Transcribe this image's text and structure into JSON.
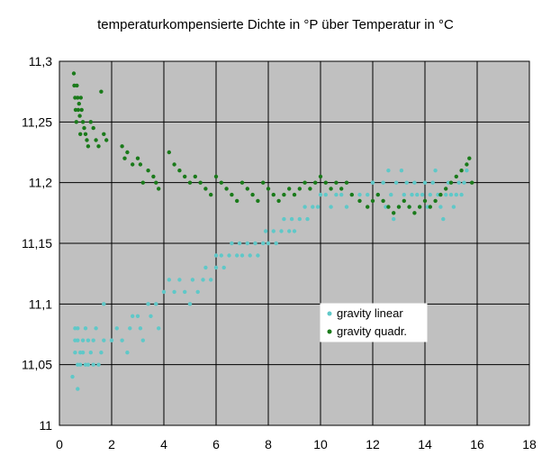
{
  "chart_data": {
    "type": "scatter",
    "title": "temperaturkompensierte Dichte in °P über Temperatur in °C",
    "xlabel": "",
    "ylabel": "",
    "xlim": [
      0,
      18
    ],
    "ylim": [
      11,
      11.3
    ],
    "x_ticks": [
      "0",
      "2",
      "4",
      "6",
      "8",
      "10",
      "12",
      "14",
      "16",
      "18"
    ],
    "y_ticks": [
      "11",
      "11,05",
      "11,1",
      "11,15",
      "11,2",
      "11,25",
      "11,3"
    ],
    "grid": true,
    "legend_position": "center-right",
    "plot_background": "#c0c0c0",
    "series": [
      {
        "name": "gravity linear",
        "color": "#5fc8c8",
        "points": [
          [
            0.5,
            11.04
          ],
          [
            0.6,
            11.07
          ],
          [
            0.6,
            11.08
          ],
          [
            0.6,
            11.06
          ],
          [
            0.7,
            11.05
          ],
          [
            0.7,
            11.07
          ],
          [
            0.7,
            11.08
          ],
          [
            0.7,
            11.03
          ],
          [
            0.8,
            11.06
          ],
          [
            0.8,
            11.05
          ],
          [
            0.9,
            11.07
          ],
          [
            0.9,
            11.06
          ],
          [
            1.0,
            11.05
          ],
          [
            1.0,
            11.08
          ],
          [
            1.1,
            11.07
          ],
          [
            1.1,
            11.05
          ],
          [
            1.2,
            11.06
          ],
          [
            1.3,
            11.05
          ],
          [
            1.3,
            11.07
          ],
          [
            1.4,
            11.08
          ],
          [
            1.5,
            11.05
          ],
          [
            1.6,
            11.06
          ],
          [
            1.7,
            11.07
          ],
          [
            1.7,
            11.1
          ],
          [
            2.0,
            11.07
          ],
          [
            2.2,
            11.08
          ],
          [
            2.4,
            11.07
          ],
          [
            2.6,
            11.06
          ],
          [
            2.7,
            11.08
          ],
          [
            2.8,
            11.09
          ],
          [
            3.0,
            11.09
          ],
          [
            3.1,
            11.08
          ],
          [
            3.2,
            11.07
          ],
          [
            3.4,
            11.1
          ],
          [
            3.5,
            11.09
          ],
          [
            3.7,
            11.1
          ],
          [
            3.8,
            11.08
          ],
          [
            4.0,
            11.11
          ],
          [
            4.2,
            11.12
          ],
          [
            4.4,
            11.11
          ],
          [
            4.6,
            11.12
          ],
          [
            4.8,
            11.11
          ],
          [
            5.0,
            11.1
          ],
          [
            5.1,
            11.12
          ],
          [
            5.3,
            11.11
          ],
          [
            5.5,
            11.12
          ],
          [
            5.6,
            11.13
          ],
          [
            5.8,
            11.12
          ],
          [
            6.0,
            11.13
          ],
          [
            6.0,
            11.14
          ],
          [
            6.2,
            11.14
          ],
          [
            6.3,
            11.13
          ],
          [
            6.5,
            11.14
          ],
          [
            6.6,
            11.15
          ],
          [
            6.8,
            11.14
          ],
          [
            6.9,
            11.15
          ],
          [
            7.0,
            11.14
          ],
          [
            7.2,
            11.15
          ],
          [
            7.3,
            11.14
          ],
          [
            7.5,
            11.15
          ],
          [
            7.6,
            11.14
          ],
          [
            7.8,
            11.15
          ],
          [
            7.9,
            11.16
          ],
          [
            8.0,
            11.15
          ],
          [
            8.2,
            11.16
          ],
          [
            8.3,
            11.15
          ],
          [
            8.5,
            11.16
          ],
          [
            8.6,
            11.17
          ],
          [
            8.8,
            11.16
          ],
          [
            8.9,
            11.17
          ],
          [
            9.0,
            11.16
          ],
          [
            9.2,
            11.17
          ],
          [
            9.4,
            11.18
          ],
          [
            9.5,
            11.17
          ],
          [
            9.7,
            11.18
          ],
          [
            9.9,
            11.18
          ],
          [
            10.0,
            11.19
          ],
          [
            10.2,
            11.19
          ],
          [
            10.4,
            11.18
          ],
          [
            10.6,
            11.19
          ],
          [
            10.8,
            11.19
          ],
          [
            11.0,
            11.18
          ],
          [
            11.2,
            11.19
          ],
          [
            11.5,
            11.19
          ],
          [
            11.8,
            11.19
          ],
          [
            12.0,
            11.2
          ],
          [
            12.2,
            11.19
          ],
          [
            12.4,
            11.2
          ],
          [
            12.5,
            11.18
          ],
          [
            12.6,
            11.21
          ],
          [
            12.7,
            11.19
          ],
          [
            12.8,
            11.17
          ],
          [
            12.9,
            11.2
          ],
          [
            13.0,
            11.18
          ],
          [
            13.1,
            11.21
          ],
          [
            13.2,
            11.19
          ],
          [
            13.3,
            11.2
          ],
          [
            13.4,
            11.18
          ],
          [
            13.5,
            11.19
          ],
          [
            13.6,
            11.2
          ],
          [
            13.7,
            11.19
          ],
          [
            13.8,
            11.18
          ],
          [
            13.9,
            11.19
          ],
          [
            14.0,
            11.2
          ],
          [
            14.1,
            11.18
          ],
          [
            14.2,
            11.19
          ],
          [
            14.3,
            11.2
          ],
          [
            14.4,
            11.21
          ],
          [
            14.5,
            11.19
          ],
          [
            14.6,
            11.18
          ],
          [
            14.7,
            11.17
          ],
          [
            14.8,
            11.19
          ],
          [
            14.9,
            11.2
          ],
          [
            15.0,
            11.19
          ],
          [
            15.1,
            11.18
          ],
          [
            15.2,
            11.19
          ],
          [
            15.3,
            11.2
          ],
          [
            15.4,
            11.19
          ],
          [
            15.5,
            11.2
          ],
          [
            15.6,
            11.21
          ]
        ]
      },
      {
        "name": "gravity quadr.",
        "color": "#1a7a1a",
        "points": [
          [
            0.55,
            11.29
          ],
          [
            0.57,
            11.28
          ],
          [
            0.6,
            11.27
          ],
          [
            0.62,
            11.26
          ],
          [
            0.65,
            11.25
          ],
          [
            0.67,
            11.28
          ],
          [
            0.7,
            11.27
          ],
          [
            0.72,
            11.26
          ],
          [
            0.75,
            11.265
          ],
          [
            0.78,
            11.255
          ],
          [
            0.8,
            11.24
          ],
          [
            0.82,
            11.27
          ],
          [
            0.85,
            11.26
          ],
          [
            0.9,
            11.25
          ],
          [
            0.95,
            11.245
          ],
          [
            1.0,
            11.24
          ],
          [
            1.05,
            11.235
          ],
          [
            1.1,
            11.23
          ],
          [
            1.2,
            11.25
          ],
          [
            1.3,
            11.245
          ],
          [
            1.4,
            11.235
          ],
          [
            1.5,
            11.23
          ],
          [
            1.6,
            11.275
          ],
          [
            1.7,
            11.24
          ],
          [
            1.8,
            11.235
          ],
          [
            2.4,
            11.23
          ],
          [
            2.5,
            11.22
          ],
          [
            2.6,
            11.225
          ],
          [
            2.8,
            11.215
          ],
          [
            3.0,
            11.22
          ],
          [
            3.1,
            11.215
          ],
          [
            3.2,
            11.2
          ],
          [
            3.4,
            11.21
          ],
          [
            3.6,
            11.205
          ],
          [
            3.7,
            11.2
          ],
          [
            3.8,
            11.195
          ],
          [
            4.2,
            11.225
          ],
          [
            4.4,
            11.215
          ],
          [
            4.6,
            11.21
          ],
          [
            4.8,
            11.205
          ],
          [
            5.0,
            11.2
          ],
          [
            5.2,
            11.205
          ],
          [
            5.4,
            11.2
          ],
          [
            5.6,
            11.195
          ],
          [
            5.8,
            11.19
          ],
          [
            6.0,
            11.205
          ],
          [
            6.2,
            11.2
          ],
          [
            6.4,
            11.195
          ],
          [
            6.6,
            11.19
          ],
          [
            6.8,
            11.185
          ],
          [
            7.0,
            11.2
          ],
          [
            7.2,
            11.195
          ],
          [
            7.4,
            11.19
          ],
          [
            7.6,
            11.185
          ],
          [
            7.8,
            11.2
          ],
          [
            8.0,
            11.195
          ],
          [
            8.2,
            11.19
          ],
          [
            8.4,
            11.185
          ],
          [
            8.6,
            11.19
          ],
          [
            8.8,
            11.195
          ],
          [
            9.0,
            11.19
          ],
          [
            9.2,
            11.195
          ],
          [
            9.4,
            11.2
          ],
          [
            9.6,
            11.195
          ],
          [
            9.8,
            11.2
          ],
          [
            10.0,
            11.205
          ],
          [
            10.2,
            11.2
          ],
          [
            10.4,
            11.195
          ],
          [
            10.6,
            11.2
          ],
          [
            10.8,
            11.195
          ],
          [
            11.0,
            11.2
          ],
          [
            11.2,
            11.19
          ],
          [
            11.5,
            11.185
          ],
          [
            11.8,
            11.18
          ],
          [
            12.0,
            11.185
          ],
          [
            12.2,
            11.19
          ],
          [
            12.4,
            11.185
          ],
          [
            12.6,
            11.18
          ],
          [
            12.8,
            11.175
          ],
          [
            13.0,
            11.18
          ],
          [
            13.2,
            11.185
          ],
          [
            13.4,
            11.18
          ],
          [
            13.6,
            11.175
          ],
          [
            13.8,
            11.18
          ],
          [
            14.0,
            11.185
          ],
          [
            14.2,
            11.18
          ],
          [
            14.4,
            11.185
          ],
          [
            14.6,
            11.19
          ],
          [
            14.8,
            11.195
          ],
          [
            15.0,
            11.2
          ],
          [
            15.2,
            11.205
          ],
          [
            15.4,
            11.21
          ],
          [
            15.6,
            11.215
          ],
          [
            15.7,
            11.22
          ],
          [
            15.8,
            11.2
          ]
        ]
      }
    ]
  }
}
